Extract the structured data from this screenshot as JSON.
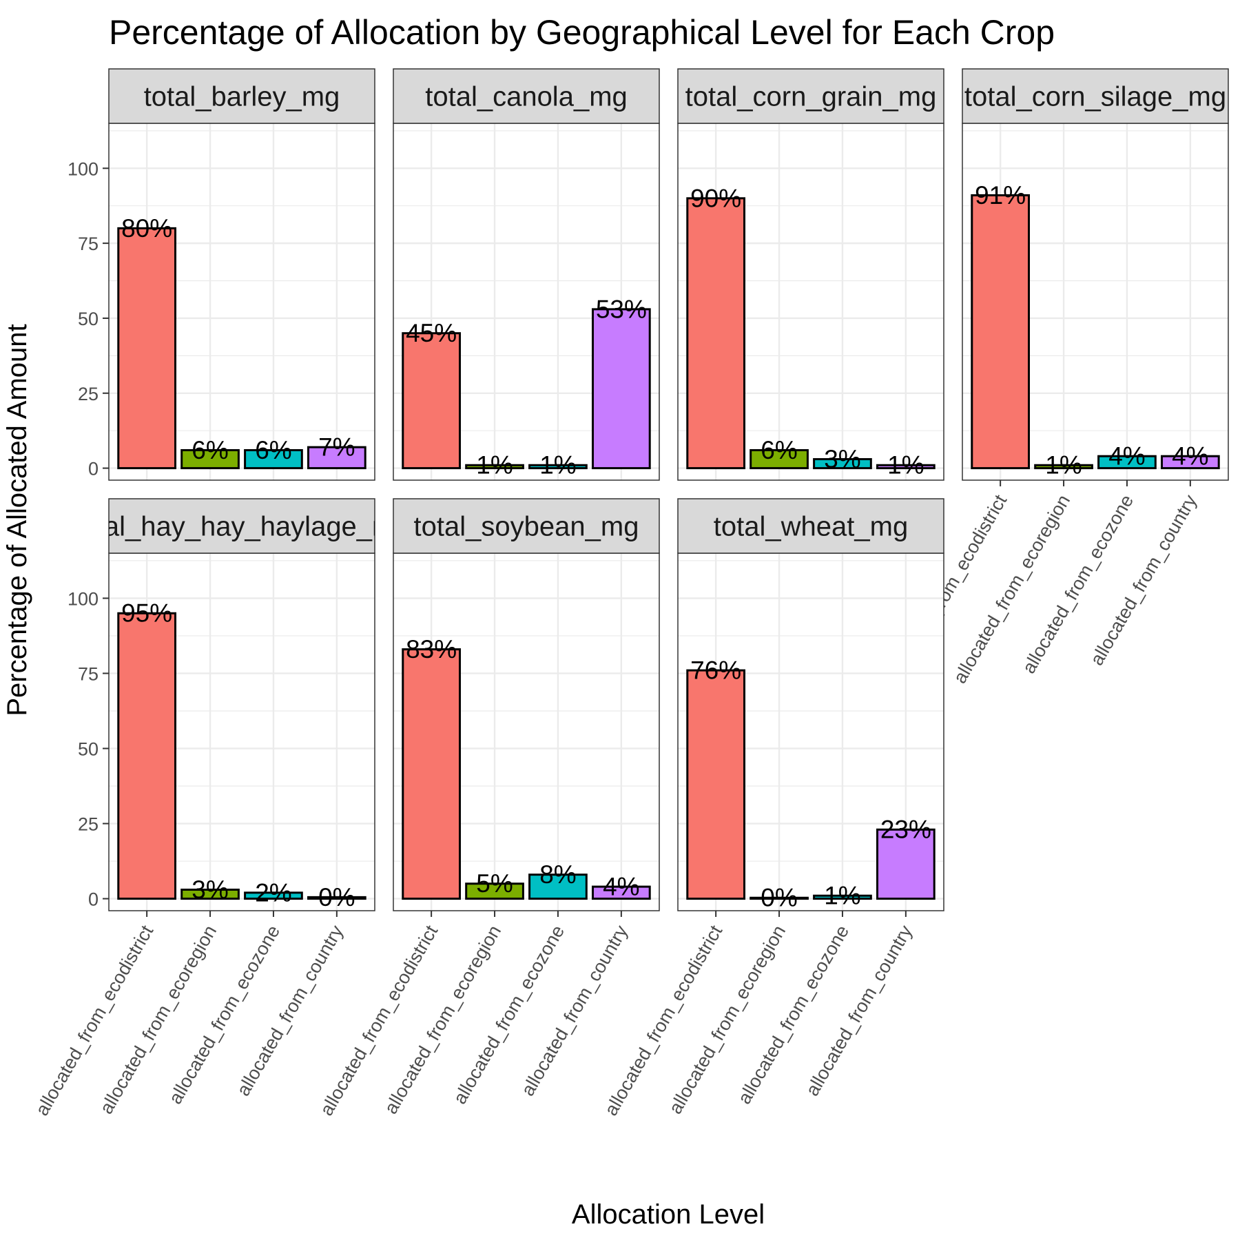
{
  "chart_data": {
    "type": "bar",
    "title": "Percentage of Allocation by Geographical Level for Each Crop",
    "xlabel": "Allocation Level",
    "ylabel": "Percentage of Allocated Amount",
    "ylim": [
      -4,
      115
    ],
    "yticks": [
      0,
      25,
      50,
      75,
      100
    ],
    "grid": true,
    "legend": "none",
    "categories": [
      "allocated_from_ecodistrict",
      "allocated_from_ecoregion",
      "allocated_from_ecozone",
      "allocated_from_country"
    ],
    "colors": [
      "#F8766D",
      "#7CAE00",
      "#00BFC4",
      "#C77CFF"
    ],
    "panels": [
      {
        "name": "total_barley_mg",
        "values": [
          80,
          6,
          6,
          7
        ],
        "labels": [
          "80%",
          "6%",
          "6%",
          "7%"
        ]
      },
      {
        "name": "total_canola_mg",
        "values": [
          45,
          1,
          1,
          53
        ],
        "labels": [
          "45%",
          "1%",
          "1%",
          "53%"
        ]
      },
      {
        "name": "total_corn_grain_mg",
        "values": [
          90,
          6,
          3,
          1
        ],
        "labels": [
          "90%",
          "6%",
          "3%",
          "1%"
        ]
      },
      {
        "name": "total_corn_silage_mg",
        "values": [
          91,
          1,
          4,
          4
        ],
        "labels": [
          "91%",
          "1%",
          "4%",
          "4%"
        ]
      },
      {
        "name": "total_hay_hay_haylage_mg",
        "values": [
          95,
          3,
          2,
          0.5
        ],
        "labels": [
          "95%",
          "3%",
          "2%",
          "0%"
        ]
      },
      {
        "name": "total_soybean_mg",
        "values": [
          83,
          5,
          8,
          4
        ],
        "labels": [
          "83%",
          "5%",
          "8%",
          "4%"
        ]
      },
      {
        "name": "total_wheat_mg",
        "values": [
          76,
          0.3,
          1,
          23
        ],
        "labels": [
          "76%",
          "0%",
          "1%",
          "23%"
        ]
      }
    ]
  }
}
